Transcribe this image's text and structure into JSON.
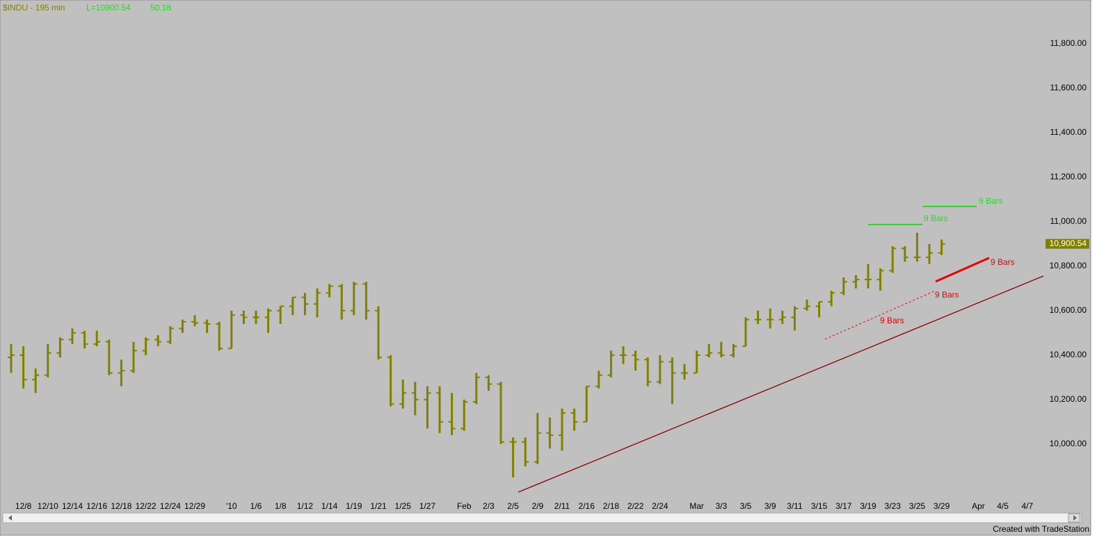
{
  "chart_data": {
    "type": "ohlc",
    "title": "$INDU - 195 min",
    "last_text": "L=10900.54",
    "change_text": "50.18",
    "footer": "Created with TradeStation",
    "color": "#808000",
    "grid": false,
    "last_price": {
      "value": 10900.54,
      "label": "10,900.54"
    },
    "ylim": [
      9762,
      11997
    ],
    "yticks": [
      {
        "value": 10000,
        "label": "10,000.00"
      },
      {
        "value": 10200,
        "label": "10,200.00"
      },
      {
        "value": 10400,
        "label": "10,400.00"
      },
      {
        "value": 10600,
        "label": "10,600.00"
      },
      {
        "value": 10800,
        "label": "10,800.00"
      },
      {
        "value": 11000,
        "label": "11,000.00"
      },
      {
        "value": 11200,
        "label": "11,200.00"
      },
      {
        "value": 11400,
        "label": "11,400.00"
      },
      {
        "value": 11600,
        "label": "11,600.00"
      },
      {
        "value": 11800,
        "label": "11,800.00"
      }
    ],
    "categories": [
      null,
      "12/8",
      null,
      "12/10",
      null,
      "12/14",
      null,
      "12/16",
      null,
      "12/18",
      null,
      "12/22",
      null,
      "12/24",
      null,
      "12/29",
      null,
      null,
      "'10",
      null,
      "1/6",
      null,
      "1/8",
      null,
      "1/12",
      null,
      "1/14",
      null,
      "1/19",
      null,
      "1/21",
      null,
      "1/25",
      null,
      "1/27",
      null,
      null,
      "Feb",
      null,
      "2/3",
      null,
      "2/5",
      null,
      "2/9",
      null,
      "2/11",
      null,
      "2/16",
      null,
      "2/18",
      null,
      "2/22",
      null,
      "2/24",
      null,
      null,
      "Mar",
      null,
      "3/3",
      null,
      "3/5",
      null,
      "3/9",
      null,
      "3/11",
      null,
      "3/15",
      null,
      "3/17",
      null,
      "3/19",
      null,
      "3/23",
      null,
      "3/25",
      null,
      "3/29",
      null,
      null,
      "Apr",
      null,
      "4/5",
      null,
      "4/7",
      null
    ],
    "open": [
      10390,
      10400,
      10290,
      10310,
      10410,
      10470,
      10500,
      10450,
      10460,
      10320,
      10330,
      10420,
      10470,
      10460,
      10520,
      10550,
      10545,
      10540,
      10430,
      10580,
      10570,
      10570,
      10600,
      10620,
      10660,
      10630,
      10680,
      10710,
      10600,
      10720,
      10600,
      10390,
      10180,
      10230,
      10200,
      10230,
      10100,
      10070,
      10190,
      10300,
      10270,
      10010,
      10010,
      9920,
      10050,
      10040,
      10140,
      10100,
      10260,
      10310,
      10400,
      10400,
      10380,
      10280,
      10370,
      10320,
      10320,
      10400,
      10410,
      10400,
      10440,
      10560,
      10560,
      10560,
      10570,
      10610,
      10620,
      10640,
      10680,
      10730,
      10740,
      10740,
      10780,
      10880,
      10840,
      10840,
      10860,
      null,
      null,
      null,
      null,
      null,
      null,
      null,
      null
    ],
    "high": [
      10450,
      10440,
      10340,
      10450,
      10480,
      10520,
      10510,
      10510,
      10470,
      10380,
      10460,
      10480,
      10490,
      10530,
      10560,
      10580,
      10560,
      10550,
      10600,
      10600,
      10600,
      10610,
      10620,
      10660,
      10680,
      10700,
      10720,
      10720,
      10730,
      10730,
      10620,
      10400,
      10290,
      10280,
      10260,
      10260,
      10230,
      10200,
      10320,
      10310,
      10280,
      10030,
      10030,
      10140,
      10120,
      10160,
      10160,
      10260,
      10330,
      10420,
      10440,
      10420,
      10390,
      10400,
      10390,
      10360,
      10420,
      10450,
      10460,
      10450,
      10570,
      10600,
      10610,
      10600,
      10620,
      10650,
      10640,
      10690,
      10750,
      10760,
      10810,
      10790,
      10890,
      10890,
      10950,
      10900,
      10920,
      null,
      null,
      null,
      null,
      null,
      null,
      null,
      null
    ],
    "low": [
      10320,
      10250,
      10230,
      10300,
      10390,
      10450,
      10430,
      10440,
      10310,
      10260,
      10320,
      10400,
      10440,
      10450,
      10500,
      10530,
      10500,
      10420,
      10430,
      10540,
      10540,
      10500,
      10540,
      10580,
      10580,
      10570,
      10660,
      10560,
      10580,
      10560,
      10380,
      10170,
      10160,
      10130,
      10070,
      10050,
      10040,
      10060,
      10180,
      10240,
      10000,
      9850,
      9900,
      9910,
      9980,
      9970,
      10060,
      10100,
      10250,
      10300,
      10360,
      10330,
      10260,
      10270,
      10180,
      10290,
      10320,
      10390,
      10390,
      10390,
      10440,
      10540,
      10520,
      10540,
      10510,
      10600,
      10570,
      10620,
      10670,
      10700,
      10700,
      10690,
      10770,
      10820,
      10820,
      10810,
      10850,
      null,
      null,
      null,
      null,
      null,
      null,
      null,
      null
    ],
    "close": [
      10400,
      10290,
      10310,
      10410,
      10470,
      10500,
      10450,
      10460,
      10320,
      10330,
      10420,
      10470,
      10460,
      10520,
      10550,
      10545,
      10540,
      10430,
      10580,
      10570,
      10570,
      10600,
      10620,
      10660,
      10630,
      10680,
      10710,
      10600,
      10720,
      10600,
      10390,
      10180,
      10230,
      10200,
      10230,
      10100,
      10070,
      10190,
      10300,
      10270,
      10010,
      10010,
      9920,
      10050,
      10040,
      10140,
      10100,
      10260,
      10310,
      10400,
      10400,
      10380,
      10280,
      10370,
      10320,
      10320,
      10400,
      10410,
      10400,
      10440,
      10560,
      10560,
      10560,
      10570,
      10610,
      10620,
      10640,
      10680,
      10730,
      10740,
      10740,
      10780,
      10880,
      10840,
      10840,
      10860,
      10900.54,
      null,
      null,
      null,
      null,
      null,
      null,
      null,
      null
    ],
    "annotations": [
      {
        "text": "9 Bars",
        "color": "#22dd22"
      },
      {
        "text": "9 Bars",
        "color": "#22dd22"
      },
      {
        "text": "9 Bars",
        "color": "#ee0000"
      },
      {
        "text": "9 Bars",
        "color": "#ee0000"
      },
      {
        "text": "9 Bars",
        "color": "#ee0000"
      }
    ]
  }
}
